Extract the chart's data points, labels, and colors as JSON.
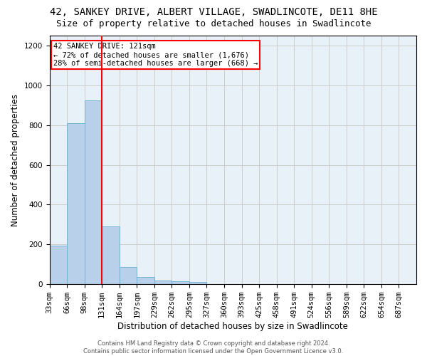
{
  "title": "42, SANKEY DRIVE, ALBERT VILLAGE, SWADLINCOTE, DE11 8HE",
  "subtitle": "Size of property relative to detached houses in Swadlincote",
  "xlabel": "Distribution of detached houses by size in Swadlincote",
  "ylabel": "Number of detached properties",
  "bin_labels": [
    "33sqm",
    "66sqm",
    "98sqm",
    "131sqm",
    "164sqm",
    "197sqm",
    "229sqm",
    "262sqm",
    "295sqm",
    "327sqm",
    "360sqm",
    "393sqm",
    "425sqm",
    "458sqm",
    "491sqm",
    "524sqm",
    "556sqm",
    "589sqm",
    "622sqm",
    "654sqm",
    "687sqm"
  ],
  "bar_values": [
    193,
    810,
    925,
    290,
    88,
    35,
    20,
    14,
    10,
    0,
    0,
    0,
    0,
    0,
    0,
    0,
    0,
    0,
    0,
    0
  ],
  "bar_color": "#b8d0ea",
  "bar_edge_color": "#6aaed6",
  "red_line_bin_idx": 3,
  "annotation_text": "42 SANKEY DRIVE: 121sqm\n← 72% of detached houses are smaller (1,676)\n28% of semi-detached houses are larger (668) →",
  "annotation_box_color": "white",
  "annotation_box_edge": "red",
  "ylim": [
    0,
    1250
  ],
  "yticks": [
    0,
    200,
    400,
    600,
    800,
    1000,
    1200
  ],
  "grid_color": "#cccccc",
  "bg_color": "#e8f0f8",
  "footnote": "Contains HM Land Registry data © Crown copyright and database right 2024.\nContains public sector information licensed under the Open Government Licence v3.0.",
  "title_fontsize": 10,
  "subtitle_fontsize": 9,
  "xlabel_fontsize": 8.5,
  "ylabel_fontsize": 8.5,
  "tick_fontsize": 7.5,
  "annot_fontsize": 7.5,
  "footnote_fontsize": 6
}
